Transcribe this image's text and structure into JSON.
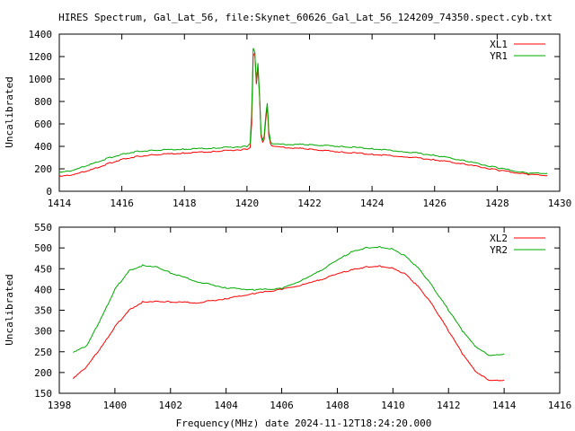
{
  "title": "HIRES Spectrum, Gal_Lat_56, file:Skynet_60626_Gal_Lat_56_124209_74350.spect.cyb.txt",
  "xlabel": "Frequency(MHz) date 2024-11-12T18:24:20.000",
  "colors": {
    "red": "#ff0000",
    "green": "#00aa00"
  },
  "chart_data": [
    {
      "type": "line",
      "ylabel": "Uncalibrated",
      "xlim": [
        1414,
        1430
      ],
      "ylim": [
        0,
        1400
      ],
      "xticks": [
        1414,
        1416,
        1418,
        1420,
        1422,
        1424,
        1426,
        1428,
        1430
      ],
      "yticks": [
        0,
        200,
        400,
        600,
        800,
        1000,
        1200,
        1400
      ],
      "legend": "top-right",
      "series": [
        {
          "name": "XL1",
          "color": "#ff0000",
          "x": [
            1414.0,
            1414.5,
            1415.0,
            1415.5,
            1416.0,
            1416.5,
            1417.0,
            1418.0,
            1419.0,
            1420.0,
            1420.1,
            1420.15,
            1420.2,
            1420.25,
            1420.3,
            1420.35,
            1420.4,
            1420.45,
            1420.5,
            1420.55,
            1420.6,
            1420.65,
            1420.7,
            1420.75,
            1420.8,
            1421.0,
            1422.0,
            1423.0,
            1424.0,
            1425.0,
            1426.0,
            1427.0,
            1428.0,
            1429.0,
            1429.6
          ],
          "y": [
            130,
            150,
            190,
            240,
            285,
            310,
            325,
            340,
            355,
            375,
            390,
            600,
            1200,
            1230,
            950,
            1100,
            850,
            500,
            440,
            460,
            640,
            760,
            500,
            420,
            400,
            395,
            375,
            350,
            330,
            310,
            280,
            240,
            190,
            150,
            140
          ]
        },
        {
          "name": "YR1",
          "color": "#00aa00",
          "x": [
            1414.0,
            1414.5,
            1415.0,
            1415.5,
            1416.0,
            1416.5,
            1417.0,
            1418.0,
            1419.0,
            1420.0,
            1420.1,
            1420.15,
            1420.2,
            1420.25,
            1420.3,
            1420.35,
            1420.4,
            1420.45,
            1420.5,
            1420.55,
            1420.6,
            1420.65,
            1420.7,
            1420.75,
            1420.8,
            1421.0,
            1422.0,
            1423.0,
            1424.0,
            1425.0,
            1426.0,
            1427.0,
            1428.0,
            1429.0,
            1429.6
          ],
          "y": [
            165,
            190,
            240,
            290,
            330,
            355,
            365,
            375,
            385,
            400,
            430,
            700,
            1270,
            1240,
            980,
            1140,
            870,
            520,
            460,
            490,
            680,
            790,
            540,
            440,
            420,
            420,
            415,
            400,
            380,
            355,
            320,
            270,
            210,
            160,
            160
          ]
        }
      ]
    },
    {
      "type": "line",
      "ylabel": "Uncalibrated",
      "xlim": [
        1398,
        1416
      ],
      "ylim": [
        150,
        550
      ],
      "xticks": [
        1398,
        1400,
        1402,
        1404,
        1406,
        1408,
        1410,
        1412,
        1414,
        1416
      ],
      "yticks": [
        150,
        200,
        250,
        300,
        350,
        400,
        450,
        500,
        550
      ],
      "legend": "top-right",
      "series": [
        {
          "name": "XL2",
          "color": "#ff0000",
          "x": [
            1398.5,
            1399.0,
            1399.5,
            1400.0,
            1400.5,
            1401.0,
            1401.5,
            1402.0,
            1403.0,
            1404.0,
            1405.0,
            1406.0,
            1407.0,
            1408.0,
            1408.5,
            1409.0,
            1409.5,
            1410.0,
            1410.5,
            1411.0,
            1411.5,
            1412.0,
            1412.5,
            1413.0,
            1413.5,
            1414.0
          ],
          "y": [
            185,
            215,
            260,
            310,
            350,
            370,
            372,
            370,
            368,
            378,
            390,
            400,
            415,
            437,
            447,
            454,
            456,
            452,
            435,
            400,
            355,
            300,
            245,
            200,
            180,
            182
          ]
        },
        {
          "name": "YR2",
          "color": "#00aa00",
          "x": [
            1398.5,
            1399.0,
            1399.5,
            1400.0,
            1400.5,
            1401.0,
            1401.5,
            1402.0,
            1403.0,
            1404.0,
            1405.0,
            1406.0,
            1407.0,
            1408.0,
            1408.5,
            1409.0,
            1409.5,
            1410.0,
            1410.5,
            1411.0,
            1411.5,
            1412.0,
            1412.5,
            1413.0,
            1413.5,
            1414.0
          ],
          "y": [
            248,
            265,
            330,
            400,
            445,
            458,
            455,
            440,
            418,
            404,
            399,
            402,
            430,
            470,
            490,
            500,
            502,
            498,
            478,
            445,
            400,
            350,
            300,
            260,
            240,
            245
          ]
        }
      ]
    }
  ]
}
